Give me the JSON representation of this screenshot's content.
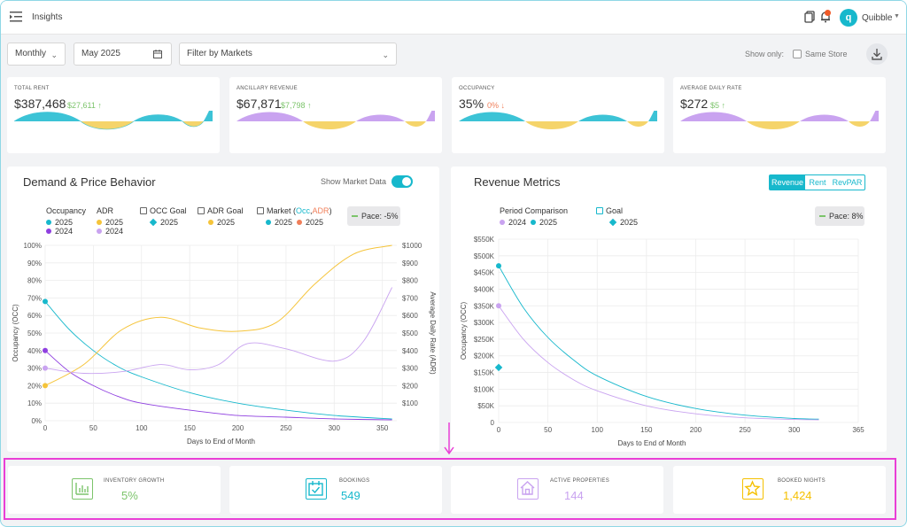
{
  "header": {
    "title": "Insights",
    "user_name": "Quibble",
    "avatar_letter": "q"
  },
  "filters": {
    "period": "Monthly",
    "date": "May 2025",
    "market_placeholder": "Filter by Markets",
    "show_only_label": "Show only:",
    "same_store_label": "Same Store"
  },
  "kpis": [
    {
      "label": "TOTAL RENT",
      "value": "$387,468",
      "delta": "$27,611 ↑",
      "trend": "up",
      "color": "#3cc3d6"
    },
    {
      "label": "ANCILLARY REVENUE",
      "value": "$67,871",
      "delta": "$7,798 ↑",
      "trend": "up",
      "color": "#b58ee6"
    },
    {
      "label": "OCCUPANCY",
      "value": "35%",
      "delta": "0% ↓",
      "trend": "down",
      "color": "#3cc3d6"
    },
    {
      "label": "AVERAGE DAILY RATE",
      "value": "$272",
      "delta": "$5 ↑",
      "trend": "up",
      "color": "#b58ee6"
    }
  ],
  "demand_panel": {
    "title": "Demand & Price Behavior",
    "toggle_label": "Show Market Data",
    "pace": "Pace: -5%",
    "legend": {
      "occupancy": "Occupancy",
      "adr": "ADR",
      "occ_goal": "OCC Goal",
      "adr_goal": "ADR Goal",
      "market_prefix": "Market (",
      "market_occ": "Occ",
      "market_sep": ",",
      "market_adr": "ADR",
      "market_suffix": ")",
      "y2025": "2025",
      "y2024": "2024"
    }
  },
  "revenue_panel": {
    "title": "Revenue Metrics",
    "tabs": [
      "Revenue",
      "Rent",
      "RevPAR"
    ],
    "active_tab": "Revenue",
    "pace": "Pace: 8%",
    "legend": {
      "period_comparison": "Period Comparison",
      "goal": "Goal",
      "y2024": "2024",
      "y2025": "2025"
    }
  },
  "bottom_cards": [
    {
      "label": "INVENTORY GROWTH",
      "value": "5%",
      "color": "#7cc46b",
      "icon": "bar-chart-icon"
    },
    {
      "label": "BOOKINGS",
      "value": "549",
      "color": "#17b8cc",
      "icon": "calendar-check-icon"
    },
    {
      "label": "ACTIVE PROPERTIES",
      "value": "144",
      "color": "#c9a3f0",
      "icon": "house-icon"
    },
    {
      "label": "BOOKED NIGHTS",
      "value": "1,424",
      "color": "#f5c000",
      "icon": "star-icon"
    }
  ],
  "colors": {
    "teal": "#17b8cc",
    "purple": "#8f3fe0",
    "light_purple": "#c9a3f0",
    "yellow": "#f5c43a",
    "orange": "#f07f5a",
    "highlight": "#e93fd6"
  },
  "chart_data": [
    {
      "type": "line",
      "title": "Demand & Price Behavior",
      "xlabel": "Days to End of Month",
      "ylabel": "Occupancy (OCC)",
      "y2label": "Average Daily Rate (ADR)",
      "xlim": [
        0,
        365
      ],
      "ylim": [
        0,
        100
      ],
      "y2lim": [
        0,
        1000
      ],
      "x_ticks": [
        0,
        50,
        100,
        150,
        200,
        250,
        300,
        350
      ],
      "y_ticks": [
        "0%",
        "10%",
        "20%",
        "30%",
        "40%",
        "50%",
        "60%",
        "70%",
        "80%",
        "90%",
        "100%"
      ],
      "y2_ticks": [
        "$100",
        "$200",
        "$300",
        "$400",
        "$500",
        "$600",
        "$700",
        "$800",
        "$900",
        "$1000"
      ],
      "grid": true,
      "series": [
        {
          "name": "Occupancy 2025",
          "axis": "left",
          "x": [
            0,
            25,
            50,
            75,
            100,
            150,
            200,
            250,
            300,
            360
          ],
          "values": [
            68,
            52,
            40,
            31,
            25,
            16,
            10,
            6,
            3,
            1
          ]
        },
        {
          "name": "Occupancy 2024",
          "axis": "left",
          "x": [
            0,
            25,
            50,
            75,
            100,
            150,
            200,
            250,
            300,
            360
          ],
          "values": [
            40,
            28,
            20,
            14,
            10,
            6,
            3,
            2,
            1,
            0.5
          ]
        },
        {
          "name": "ADR 2025",
          "axis": "right",
          "x": [
            0,
            40,
            80,
            120,
            160,
            200,
            240,
            280,
            320,
            360
          ],
          "values": [
            200,
            320,
            520,
            590,
            530,
            510,
            560,
            780,
            950,
            1000
          ]
        },
        {
          "name": "ADR 2024",
          "axis": "right",
          "x": [
            0,
            40,
            80,
            120,
            150,
            180,
            210,
            250,
            300,
            330,
            360
          ],
          "values": [
            300,
            270,
            280,
            320,
            290,
            320,
            440,
            410,
            340,
            450,
            760
          ]
        }
      ]
    },
    {
      "type": "line",
      "title": "Revenue Metrics",
      "xlabel": "Days to End of Month",
      "xlim": [
        0,
        365
      ],
      "ylim": [
        0,
        550000
      ],
      "x_ticks": [
        0,
        50,
        100,
        150,
        200,
        250,
        300,
        365
      ],
      "y_ticks": [
        "0",
        "$50K",
        "$100K",
        "$150K",
        "$200K",
        "$250K",
        "$300K",
        "$350K",
        "$400K",
        "$450K",
        "$500K",
        "$550K"
      ],
      "grid": true,
      "series": [
        {
          "name": "2025",
          "x": [
            0,
            25,
            50,
            75,
            100,
            150,
            200,
            250,
            300,
            325
          ],
          "values": [
            470000,
            345000,
            255000,
            190000,
            140000,
            78000,
            42000,
            22000,
            12000,
            10000
          ]
        },
        {
          "name": "2024",
          "x": [
            0,
            25,
            50,
            75,
            100,
            150,
            200,
            250,
            300,
            325
          ],
          "values": [
            350000,
            250000,
            180000,
            130000,
            95000,
            50000,
            26000,
            14000,
            9000,
            8000
          ]
        },
        {
          "name": "Goal 2025",
          "x": [
            0
          ],
          "values": [
            165000
          ]
        }
      ]
    }
  ]
}
